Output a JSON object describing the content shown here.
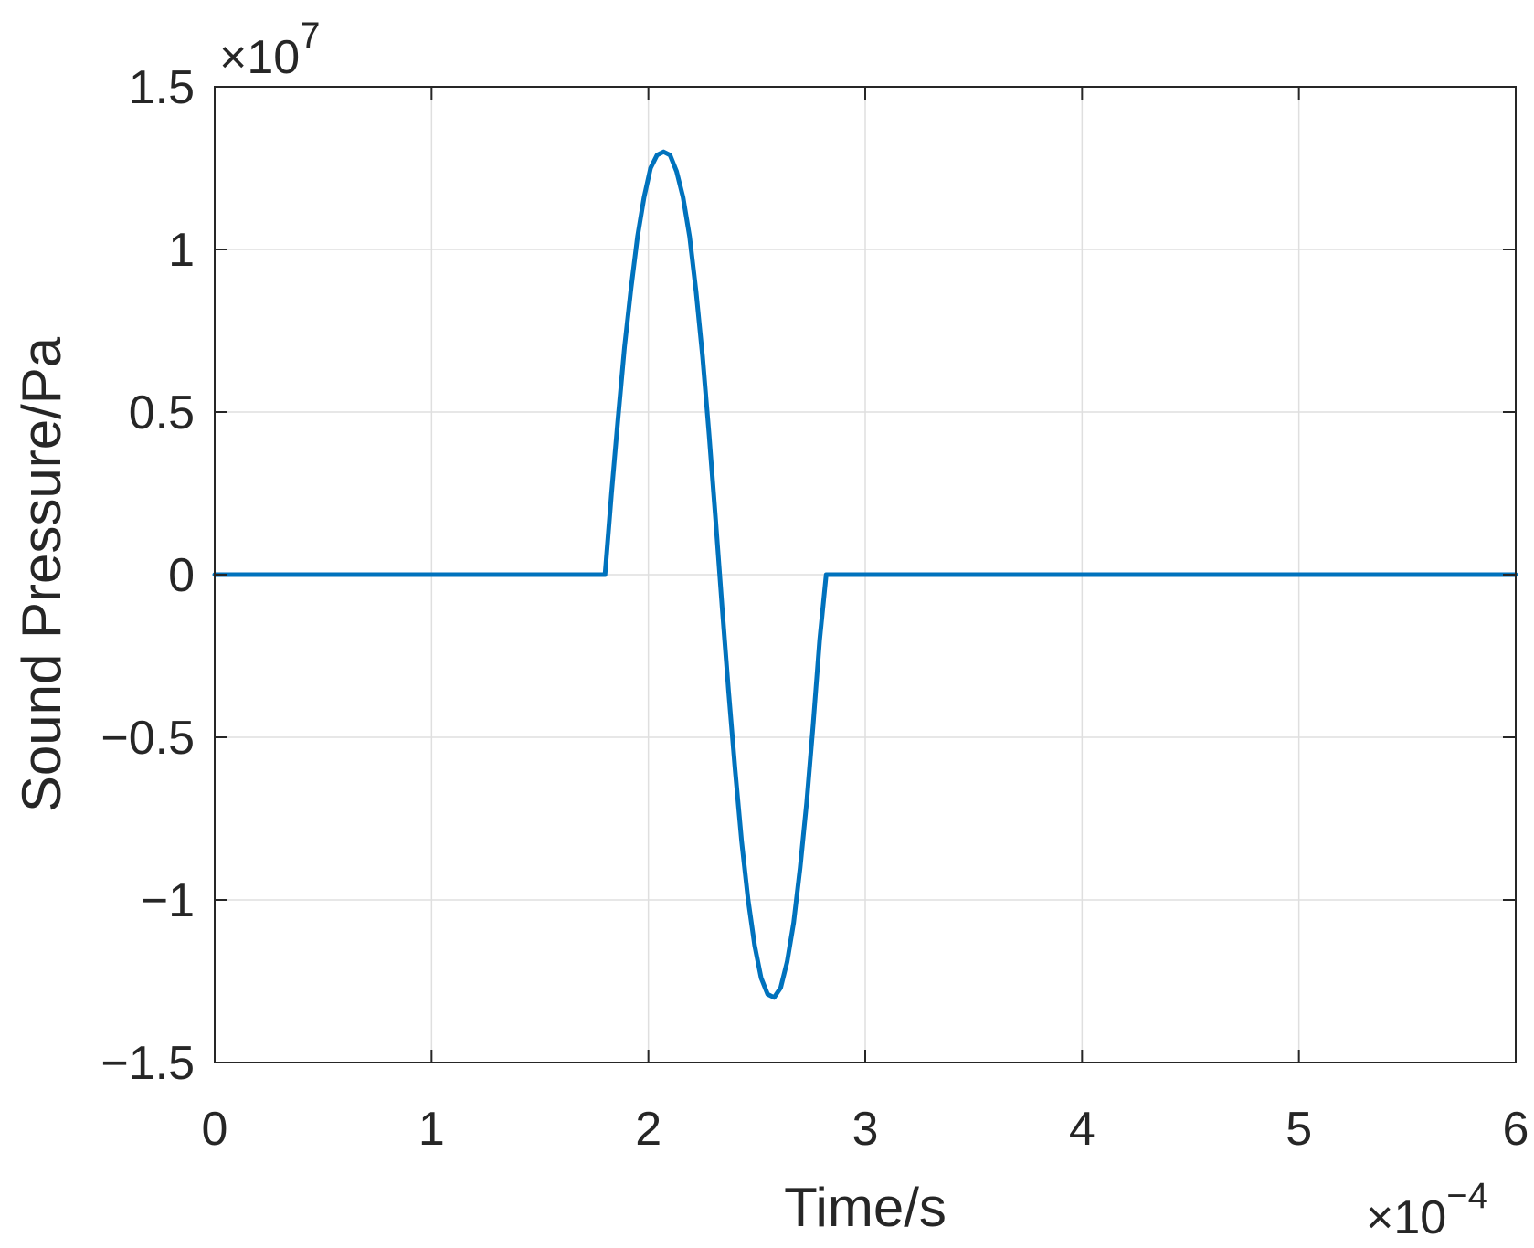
{
  "chart_data": {
    "type": "line",
    "title": "",
    "xlabel": "Time/s",
    "ylabel": "Sound Pressure/Pa",
    "x_multiplier_label": {
      "base": "×10",
      "exp": "−4"
    },
    "y_multiplier_label": {
      "base": "×10",
      "exp": "7"
    },
    "xlim": [
      0,
      6
    ],
    "ylim": [
      -1.5,
      1.5
    ],
    "x_ticks": [
      0,
      1,
      2,
      3,
      4,
      5,
      6
    ],
    "x_tick_labels": [
      "0",
      "1",
      "2",
      "3",
      "4",
      "5",
      "6"
    ],
    "y_ticks": [
      -1.5,
      -1,
      -0.5,
      0,
      0.5,
      1,
      1.5
    ],
    "y_tick_labels": [
      "−1.5",
      "−1",
      "−0.5",
      "0",
      "0.5",
      "1",
      "1.5"
    ],
    "grid": true,
    "legend": "none",
    "series": [
      {
        "color": "#0072BD",
        "x": [
          0,
          1.8,
          1.83,
          1.86,
          1.89,
          1.92,
          1.95,
          1.98,
          2.01,
          2.04,
          2.07,
          2.1,
          2.13,
          2.16,
          2.19,
          2.22,
          2.25,
          2.28,
          2.31,
          2.34,
          2.37,
          2.4,
          2.43,
          2.46,
          2.49,
          2.52,
          2.55,
          2.58,
          2.61,
          2.64,
          2.67,
          2.7,
          2.73,
          2.76,
          2.79,
          2.82,
          2.85,
          2.88,
          2.91,
          2.94,
          2.97,
          3.0,
          3.03,
          3.05,
          6
        ],
        "y": [
          0,
          0,
          0.25,
          0.48,
          0.7,
          0.88,
          1.04,
          1.16,
          1.25,
          1.29,
          1.3,
          1.29,
          1.24,
          1.16,
          1.04,
          0.87,
          0.67,
          0.43,
          0.17,
          -0.1,
          -0.36,
          -0.6,
          -0.82,
          -1.0,
          -1.14,
          -1.24,
          -1.29,
          -1.3,
          -1.27,
          -1.19,
          -1.07,
          -0.9,
          -0.7,
          -0.46,
          -0.2,
          0.0,
          0.0,
          0.0,
          0.0,
          0.0,
          0.0,
          0.0,
          0.0,
          0.0,
          0.0
        ]
      }
    ]
  }
}
